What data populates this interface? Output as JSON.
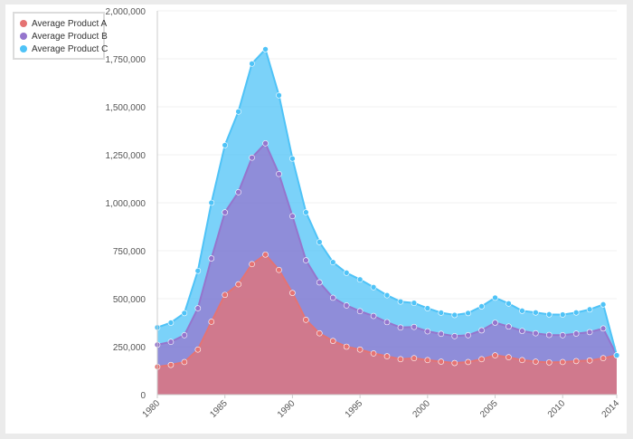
{
  "chart_data": {
    "type": "area",
    "stacked": true,
    "x": [
      1980,
      1981,
      1982,
      1983,
      1984,
      1985,
      1986,
      1987,
      1988,
      1989,
      1990,
      1991,
      1992,
      1993,
      1994,
      1995,
      1996,
      1997,
      1998,
      1999,
      2000,
      2001,
      2002,
      2003,
      2004,
      2005,
      2006,
      2007,
      2008,
      2009,
      2010,
      2011,
      2012,
      2013,
      2014
    ],
    "x_ticks": [
      1980,
      1985,
      1990,
      1995,
      2000,
      2005,
      2010,
      2014
    ],
    "y_ticks": [
      "0",
      "250,000",
      "500,000",
      "750,000",
      "1,000,000",
      "1,250,000",
      "1,500,000",
      "1,750,000",
      "2,000,000"
    ],
    "ylim": [
      0,
      2000000
    ],
    "legend_position": "top-left",
    "grid": true,
    "series": [
      {
        "name": "Average Product A",
        "color": "#e57373",
        "values": [
          145000,
          155000,
          170000,
          235000,
          380000,
          520000,
          575000,
          680000,
          730000,
          650000,
          530000,
          390000,
          320000,
          280000,
          250000,
          235000,
          215000,
          200000,
          185000,
          190000,
          180000,
          172000,
          165000,
          170000,
          185000,
          205000,
          195000,
          180000,
          172000,
          168000,
          170000,
          175000,
          178000,
          190000,
          205000
        ]
      },
      {
        "name": "Average Product B",
        "color": "#9575cd",
        "values": [
          115000,
          120000,
          140000,
          215000,
          330000,
          430000,
          480000,
          555000,
          580000,
          500000,
          400000,
          310000,
          265000,
          225000,
          215000,
          200000,
          195000,
          178000,
          165000,
          163000,
          150000,
          145000,
          140000,
          140000,
          150000,
          170000,
          160000,
          152000,
          148000,
          143000,
          140000,
          143000,
          148000,
          155000,
          0
        ]
      },
      {
        "name": "Average Product C",
        "color": "#4fc3f7",
        "values": [
          90000,
          100000,
          115000,
          195000,
          290000,
          350000,
          420000,
          490000,
          490000,
          410000,
          300000,
          250000,
          210000,
          185000,
          170000,
          165000,
          150000,
          140000,
          135000,
          125000,
          120000,
          110000,
          110000,
          115000,
          125000,
          130000,
          120000,
          105000,
          108000,
          107000,
          107000,
          110000,
          118000,
          125000,
          0
        ]
      }
    ]
  }
}
